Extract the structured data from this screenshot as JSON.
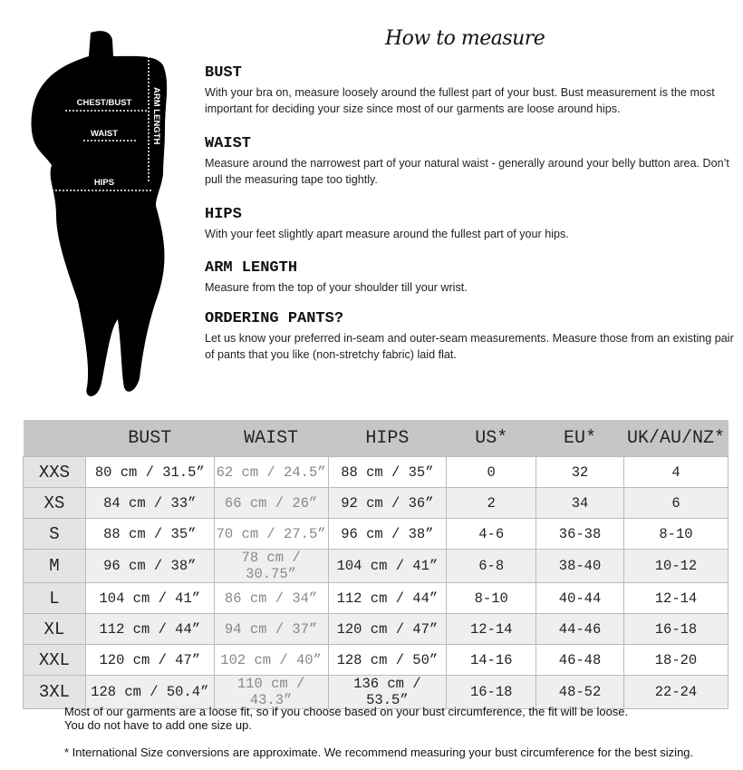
{
  "figure": {
    "labels": {
      "chest": "CHEST/BUST",
      "waist": "WAIST",
      "hips": "HIPS",
      "arm": "ARM LENGTH"
    }
  },
  "title": "How to measure",
  "sections": [
    {
      "heading": "BUST",
      "body": "With your bra on, measure loosely around the fullest part of your bust. Bust measurement is the most important for deciding your size since most of our garments are loose around hips."
    },
    {
      "heading": "WAIST",
      "body": "Measure around the narrowest part of your natural waist - generally around your belly button area. Don’t pull the measuring tape too tightly."
    },
    {
      "heading": "HIPS",
      "body": "With your feet slightly apart measure around the fullest part of your hips."
    },
    {
      "heading": "ARM LENGTH",
      "body": "Measure from the top of your shoulder till your wrist."
    },
    {
      "heading": "ORDERING PANTS?",
      "body": "Let us know your preferred in-seam and outer-seam measurements. Measure those from an existing pair of pants that you like (non-stretchy fabric) laid flat."
    }
  ],
  "table": {
    "headers": [
      "",
      "BUST",
      "WAIST",
      "HIPS",
      "US*",
      "EU*",
      "UK/AU/NZ*"
    ],
    "rows": [
      [
        "XXS",
        "80 cm / 31.5”",
        "62 cm / 24.5”",
        "88 cm / 35”",
        "0",
        "32",
        "4"
      ],
      [
        "XS",
        "84 cm / 33”",
        "66 cm / 26”",
        "92 cm / 36”",
        "2",
        "34",
        "6"
      ],
      [
        "S",
        "88 cm / 35”",
        "70 cm / 27.5”",
        "96 cm / 38”",
        "4-6",
        "36-38",
        "8-10"
      ],
      [
        "M",
        "96 cm / 38”",
        "78 cm / 30.75”",
        "104 cm / 41”",
        "6-8",
        "38-40",
        "10-12"
      ],
      [
        "L",
        "104 cm / 41”",
        "86 cm / 34”",
        "112 cm / 44”",
        "8-10",
        "40-44",
        "12-14"
      ],
      [
        "XL",
        "112 cm / 44”",
        "94 cm / 37”",
        "120 cm / 47”",
        "12-14",
        "44-46",
        "16-18"
      ],
      [
        "XXL",
        "120 cm / 47”",
        "102 cm / 40”",
        "128 cm / 50”",
        "14-16",
        "46-48",
        "18-20"
      ],
      [
        "3XL",
        "128 cm / 50.4”",
        "110 cm / 43.3”",
        "136 cm / 53.5”",
        "16-18",
        "48-52",
        "22-24"
      ]
    ]
  },
  "footer": {
    "line1": "Most of our garments are a loose fit, so if you choose based on your bust circumference, the fit will be loose.",
    "line2": "You do not have to add one size up.",
    "line3": "* International Size conversions are approximate. We recommend measuring your bust circumference for the best sizing."
  }
}
